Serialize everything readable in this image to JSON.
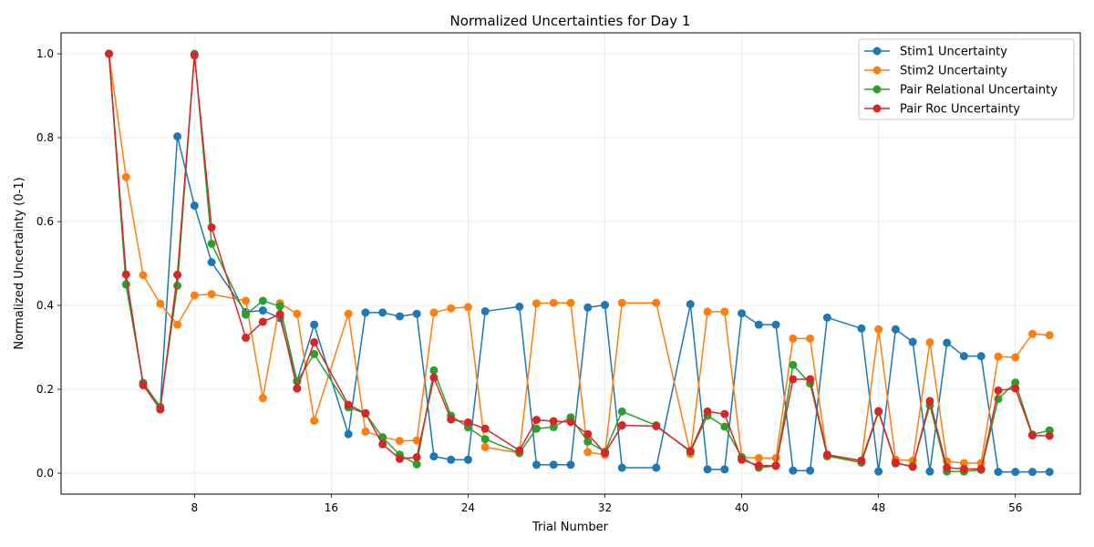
{
  "chart_data": {
    "type": "line",
    "title": "Normalized Uncertainties for Day 1",
    "xlabel": "Trial Number",
    "ylabel": "Normalized Uncertainty (0-1)",
    "xlim": [
      0.2,
      59.8
    ],
    "ylim": [
      -0.05,
      1.05
    ],
    "xticks": [
      8,
      16,
      24,
      32,
      40,
      48,
      56
    ],
    "yticks": [
      0.0,
      0.2,
      0.4,
      0.6,
      0.8,
      1.0
    ],
    "grid": true,
    "legend_position": "top-right",
    "x": [
      3,
      4,
      5,
      6,
      7,
      8,
      9,
      11,
      12,
      13,
      14,
      15,
      17,
      18,
      19,
      20,
      21,
      22,
      23,
      24,
      25,
      27,
      28,
      29,
      30,
      31,
      32,
      33,
      35,
      37,
      38,
      39,
      40,
      41,
      42,
      43,
      44,
      45,
      47,
      48,
      49,
      50,
      51,
      52,
      53,
      54,
      55,
      56,
      57,
      58
    ],
    "series": [
      {
        "name": "Stim1 Uncertainty",
        "color": "#1f77b4",
        "values": [
          1.0,
          0.45,
          0.215,
          0.158,
          0.803,
          0.638,
          0.503,
          0.384,
          0.388,
          0.37,
          0.219,
          0.354,
          0.093,
          0.383,
          0.383,
          0.374,
          0.38,
          0.04,
          0.032,
          0.032,
          0.386,
          0.397,
          0.02,
          0.02,
          0.02,
          0.395,
          0.401,
          0.013,
          0.013,
          0.403,
          0.009,
          0.009,
          0.381,
          0.354,
          0.354,
          0.006,
          0.006,
          0.371,
          0.345,
          0.004,
          0.343,
          0.313,
          0.004,
          0.311,
          0.279,
          0.279,
          0.003,
          0.003,
          0.003,
          0.003
        ]
      },
      {
        "name": "Stim2 Uncertainty",
        "color": "#ff7f0e",
        "values": [
          1.0,
          0.706,
          0.472,
          0.404,
          0.354,
          0.424,
          0.427,
          0.411,
          0.179,
          0.405,
          0.38,
          0.125,
          0.38,
          0.099,
          0.086,
          0.077,
          0.078,
          0.383,
          0.393,
          0.396,
          0.062,
          0.048,
          0.405,
          0.406,
          0.406,
          0.05,
          0.044,
          0.406,
          0.406,
          0.046,
          0.385,
          0.385,
          0.038,
          0.036,
          0.036,
          0.321,
          0.321,
          0.04,
          0.03,
          0.343,
          0.032,
          0.03,
          0.312,
          0.028,
          0.024,
          0.024,
          0.278,
          0.276,
          0.332,
          0.329
        ]
      },
      {
        "name": "Pair Relational Uncertainty",
        "color": "#2ca02c",
        "values": [
          1.0,
          0.45,
          0.215,
          0.158,
          0.447,
          1.0,
          0.547,
          0.378,
          0.411,
          0.398,
          0.219,
          0.284,
          0.157,
          0.142,
          0.085,
          0.044,
          0.021,
          0.245,
          0.137,
          0.109,
          0.081,
          0.048,
          0.106,
          0.11,
          0.133,
          0.075,
          0.051,
          0.147,
          0.114,
          0.051,
          0.137,
          0.111,
          0.038,
          0.013,
          0.017,
          0.258,
          0.214,
          0.041,
          0.025,
          0.146,
          0.023,
          0.017,
          0.162,
          0.004,
          0.004,
          0.008,
          0.177,
          0.216,
          0.092,
          0.102
        ]
      },
      {
        "name": "Pair Roc Uncertainty",
        "color": "#d62728",
        "values": [
          1.0,
          0.474,
          0.21,
          0.152,
          0.473,
          0.996,
          0.586,
          0.323,
          0.361,
          0.379,
          0.202,
          0.312,
          0.163,
          0.143,
          0.069,
          0.034,
          0.038,
          0.228,
          0.128,
          0.121,
          0.106,
          0.054,
          0.127,
          0.124,
          0.122,
          0.093,
          0.048,
          0.114,
          0.112,
          0.053,
          0.147,
          0.141,
          0.032,
          0.018,
          0.018,
          0.224,
          0.224,
          0.044,
          0.03,
          0.148,
          0.025,
          0.015,
          0.172,
          0.013,
          0.01,
          0.01,
          0.197,
          0.202,
          0.09,
          0.089
        ]
      }
    ]
  }
}
